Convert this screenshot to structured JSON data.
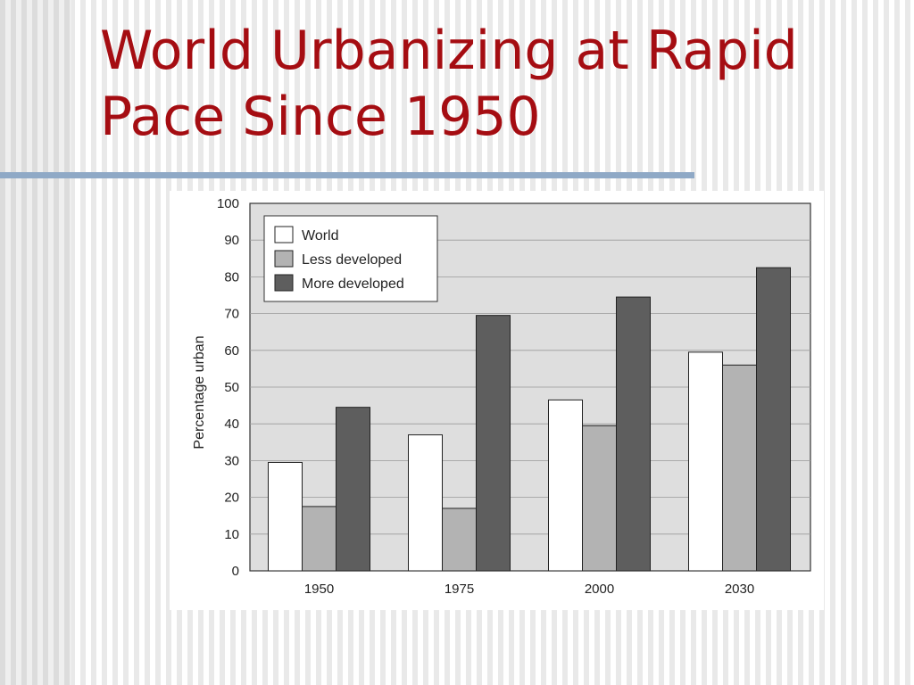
{
  "slide": {
    "title": "World Urbanizing at Rapid Pace Since 1950"
  },
  "colors": {
    "title": "#a50d12",
    "rule": "#8fa9c6",
    "plot_background": "#dedede",
    "world": "#ffffff",
    "less_developed": "#b3b3b3",
    "more_developed": "#5e5e5e"
  },
  "chart_data": {
    "type": "bar",
    "title": "",
    "xlabel": "",
    "ylabel": "Percentage urban",
    "ylim": [
      0,
      100
    ],
    "yticks": [
      0,
      10,
      20,
      30,
      40,
      50,
      60,
      70,
      80,
      90,
      100
    ],
    "categories": [
      "1950",
      "1975",
      "2000",
      "2030"
    ],
    "series": [
      {
        "name": "World",
        "color": "#ffffff",
        "values": [
          29.5,
          37,
          46.5,
          59.5
        ]
      },
      {
        "name": "Less developed",
        "color": "#b3b3b3",
        "values": [
          17.5,
          17,
          39.5,
          56
        ]
      },
      {
        "name": "More developed",
        "color": "#5e5e5e",
        "values": [
          44.5,
          69.5,
          74.5,
          82.5
        ]
      }
    ],
    "grid": true,
    "legend_position": "top-left"
  }
}
